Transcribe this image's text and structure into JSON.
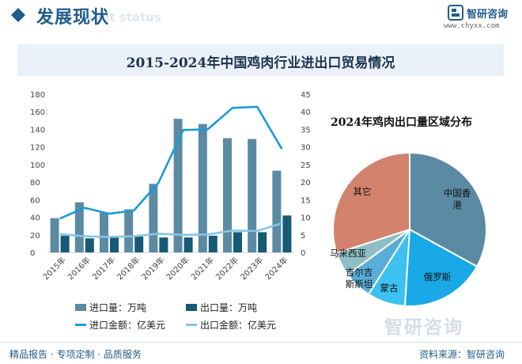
{
  "header": {
    "section_title": "发展现状",
    "ghost_text": "ment status",
    "brand": "智研咨询",
    "url": "www.chyxx.com"
  },
  "title": "2015-2024年中国鸡肉行业进出口贸易情况",
  "colors": {
    "import_volume": "#5b8aa3",
    "export_volume": "#165a77",
    "import_value": "#1a9ad6",
    "export_value": "#85c6e6",
    "pie_hk": "#5b8aa3",
    "pie_russia": "#18a9e6",
    "pie_mongolia": "#3cc1f0",
    "pie_kyrgyz": "#58aed8",
    "pie_malaysia": "#8ebfc7",
    "pie_other": "#d2826d"
  },
  "chart_data": [
    {
      "type": "bar",
      "categories": [
        "2015年",
        "2016年",
        "2017年",
        "2018年",
        "2019年",
        "2020年",
        "2021年",
        "2022年",
        "2023年",
        "2024年"
      ],
      "series": [
        {
          "name": "进口量：万吨",
          "axis": "left",
          "values": [
            39,
            57,
            45,
            49,
            78,
            152,
            146,
            130,
            129,
            93
          ]
        },
        {
          "name": "出口量：万吨",
          "axis": "left",
          "values": [
            19,
            16,
            17,
            18,
            17,
            17,
            19,
            23,
            23,
            42
          ]
        },
        {
          "name": "进口金额：亿美元",
          "axis": "right",
          "type": "line",
          "values": [
            9.6,
            12.7,
            11,
            11.9,
            19.8,
            34.8,
            35,
            41.1,
            41.4,
            29.4
          ]
        },
        {
          "name": "出口金额：亿美元",
          "axis": "right",
          "type": "line",
          "values": [
            5.2,
            4.6,
            4.4,
            4.6,
            5.3,
            5,
            5.1,
            6.2,
            6.1,
            8.3
          ]
        }
      ],
      "y_ticks": [
        "0",
        "20",
        "40",
        "60",
        "80",
        "100",
        "120",
        "140",
        "160",
        "180"
      ],
      "y2_ticks": [
        "0",
        "5",
        "10",
        "15",
        "20",
        "25",
        "30",
        "35",
        "40",
        "45"
      ],
      "ylim": [
        0,
        180
      ],
      "y2lim": [
        0,
        45
      ],
      "grid": false,
      "legend": "bottom"
    },
    {
      "type": "pie",
      "title": "2024年鸡肉出口量区域分布",
      "labels": [
        "中国香港",
        "俄罗斯",
        "蒙古",
        "吉尔吉斯斯坦",
        "马来西亚",
        "其它"
      ],
      "label_lines": [
        [
          "中国香",
          "港"
        ],
        [
          "俄罗斯"
        ],
        [
          "蒙古"
        ],
        [
          "吉尔吉",
          "斯斯坦"
        ],
        [
          "马来西亚"
        ],
        [
          "其它"
        ]
      ],
      "values": [
        33,
        18,
        8,
        6,
        5,
        30
      ]
    }
  ],
  "footer": {
    "left": "精品报告 · 专项定制 · 品质服务",
    "right": "资料来源：智研咨询"
  },
  "watermark": "智研咨询"
}
